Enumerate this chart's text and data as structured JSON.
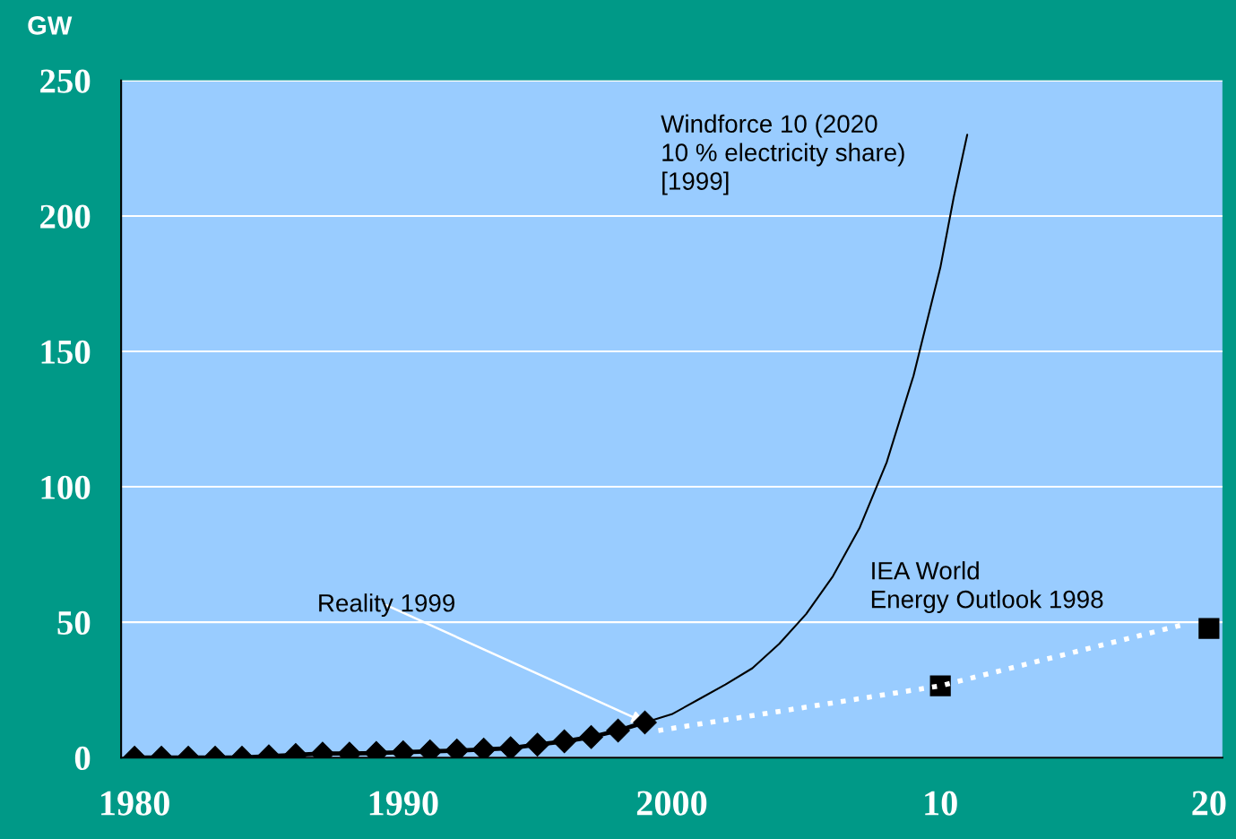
{
  "chart_data": {
    "type": "line",
    "ylabel": "GW",
    "xlim": [
      1979.5,
      2020.5
    ],
    "ylim": [
      0,
      250
    ],
    "xticks": [
      1980,
      1990,
      2000,
      {
        "value": 2010,
        "label": "10"
      },
      {
        "value": 2020,
        "label": "20"
      }
    ],
    "yticks": [
      0,
      50,
      100,
      150,
      200,
      250
    ],
    "grid": "y",
    "legend": false,
    "series": [
      {
        "color": "#000000",
        "marker": "none",
        "line_style": "solid",
        "x": [
          1999,
          2000,
          2001,
          2002,
          2003,
          2004,
          2005,
          2006,
          2007,
          2008,
          2009,
          2010,
          2010.5,
          2011
        ],
        "values": [
          13,
          16,
          21.5,
          27,
          33,
          42,
          53,
          67,
          85,
          109,
          141,
          181,
          207,
          230
        ]
      },
      {
        "color": "#ffffff",
        "marker": "none",
        "line_style": "dotted",
        "x": [
          1999.5,
          2010,
          2019
        ],
        "values": [
          10,
          26.5,
          49
        ]
      },
      {
        "color": "#000000",
        "marker": "diamond",
        "line_style": "solid",
        "x": [
          1980,
          1981,
          1982,
          1983,
          1984,
          1985,
          1986,
          1987,
          1988,
          1989,
          1990,
          1991,
          1992,
          1993,
          1994,
          1995,
          1996,
          1997,
          1998,
          1999
        ],
        "values": [
          0,
          0,
          0,
          0,
          0,
          0.5,
          1,
          1.5,
          1.5,
          1.7,
          2,
          2.3,
          2.6,
          3,
          3.5,
          4.8,
          6,
          7.6,
          10,
          13
        ]
      },
      {
        "type": "scatter",
        "color": "#000000",
        "marker": "square",
        "x": [
          2010,
          2020
        ],
        "values": [
          26.5,
          47.7
        ]
      }
    ],
    "annotations": [
      "Windforce 10 (2020\n10 % electricity share)\n[1999]",
      "IEA World\nEnergy Outlook 1998",
      {
        "text": "Reality 1999",
        "x": 1999,
        "y": 13
      }
    ]
  }
}
